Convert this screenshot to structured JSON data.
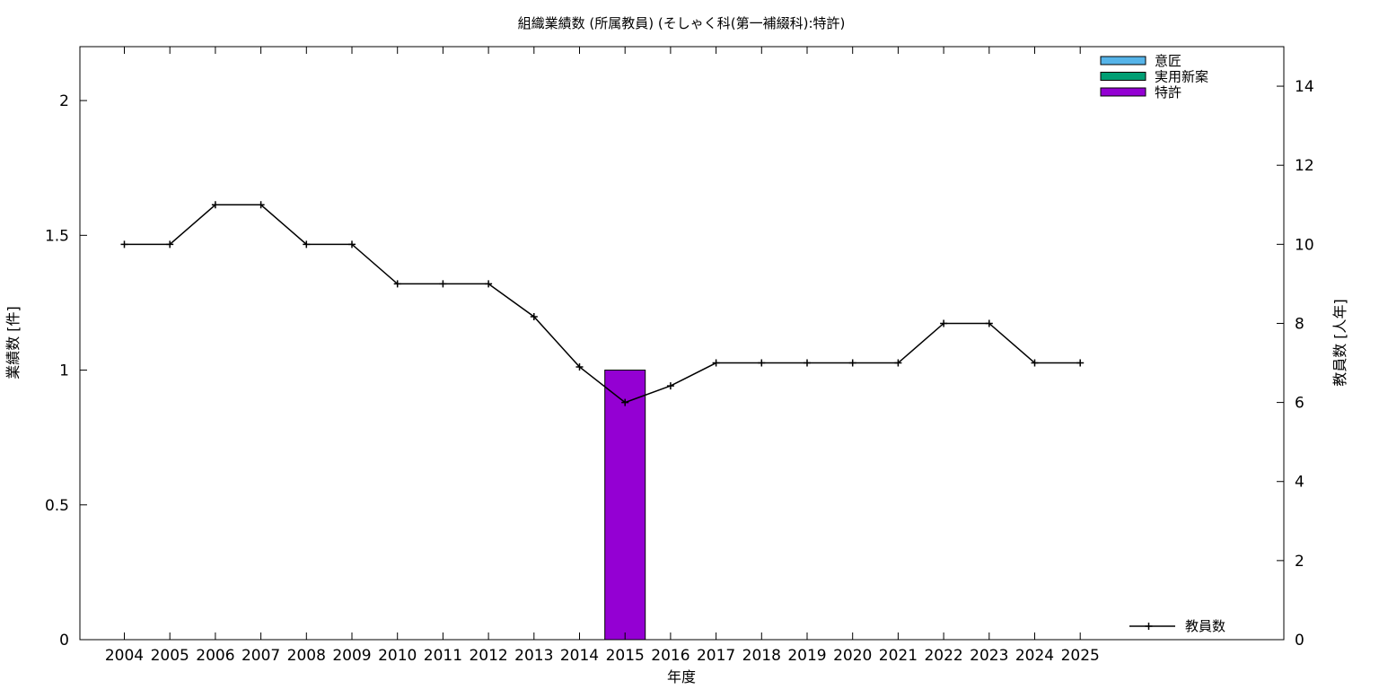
{
  "chart_data": {
    "type": "bar",
    "title": "組織業績数 (所属教員) (そしゃく科(第一補綴科):特許)",
    "xlabel": "年度",
    "ylabel": "業績数 [件]",
    "y2label": "教員数 [人年]",
    "categories": [
      "2004",
      "2005",
      "2006",
      "2007",
      "2008",
      "2009",
      "2010",
      "2011",
      "2012",
      "2013",
      "2014",
      "2015",
      "2016",
      "2017",
      "2018",
      "2019",
      "2020",
      "2021",
      "2022",
      "2023",
      "2024",
      "2025"
    ],
    "ylim": [
      0,
      2.2
    ],
    "yticks": [
      0,
      0.5,
      1,
      1.5,
      2
    ],
    "ytick_labels": [
      "0",
      "0.5",
      "1",
      "1.5",
      "2"
    ],
    "y2lim": [
      0,
      15
    ],
    "y2ticks": [
      0,
      2,
      4,
      6,
      8,
      10,
      12,
      14
    ],
    "bar_series": [
      {
        "name": "意匠",
        "color": "#56b4e9",
        "values": [
          0,
          0,
          0,
          0,
          0,
          0,
          0,
          0,
          0,
          0,
          0,
          0,
          0,
          0,
          0,
          0,
          0,
          0,
          0,
          0,
          0,
          0
        ]
      },
      {
        "name": "実用新案",
        "color": "#009e73",
        "values": [
          0,
          0,
          0,
          0,
          0,
          0,
          0,
          0,
          0,
          0,
          0,
          0,
          0,
          0,
          0,
          0,
          0,
          0,
          0,
          0,
          0,
          0
        ]
      },
      {
        "name": "特許",
        "color": "#9400d3",
        "values": [
          0,
          0,
          0,
          0,
          0,
          0,
          0,
          0,
          0,
          0,
          0,
          1,
          0,
          0,
          0,
          0,
          0,
          0,
          0,
          0,
          0,
          0
        ]
      }
    ],
    "line_series": {
      "name": "教員数",
      "color": "#000000",
      "axis": "y2",
      "values": [
        10,
        10,
        11,
        11,
        10,
        10,
        9,
        9,
        9,
        8.17,
        6.9,
        6,
        6.42,
        7,
        7,
        7,
        7,
        7,
        8,
        8,
        7,
        7
      ]
    },
    "legend_bars_position": "top-right",
    "legend_line_position": "bottom-right",
    "grid": false
  }
}
